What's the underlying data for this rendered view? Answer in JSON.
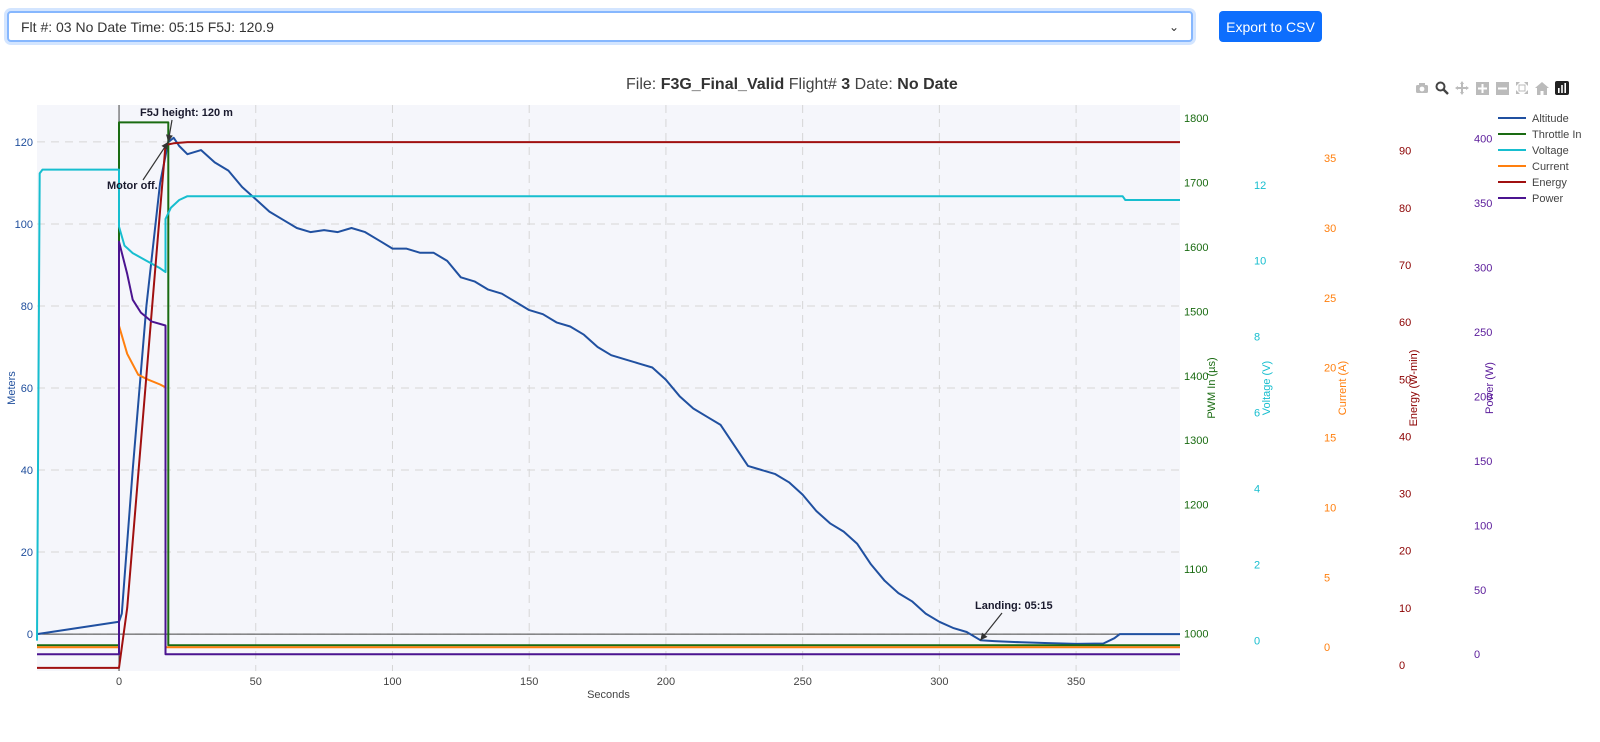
{
  "selector": {
    "value": "Flt #: 03 No Date Time: 05:15 F5J: 120.9"
  },
  "export_label": "Export to CSV",
  "title": {
    "file_label": "File:",
    "file": "F3G_Final_Valid",
    "flight_label": "Flight#",
    "flight": "3",
    "date_label": "Date:",
    "date": "No Date"
  },
  "modebar": [
    "camera-icon",
    "zoom-icon",
    "pan-icon",
    "zoom-in-icon",
    "zoom-out-icon",
    "autoscale-icon",
    "home-icon",
    "plotly-logo-icon"
  ],
  "chart_data": {
    "type": "line",
    "xlabel": "Seconds",
    "xlim": [
      -30,
      388
    ],
    "xticks": [
      0,
      50,
      100,
      150,
      200,
      250,
      300,
      350
    ],
    "axes": {
      "y": {
        "label": "Meters",
        "range": [
          -9,
          129
        ],
        "ticks": [
          0,
          20,
          40,
          60,
          80,
          100,
          120
        ],
        "color": "#1f4e9c"
      },
      "y2": {
        "label": "PWM In (µs)",
        "range": [
          942,
          1820
        ],
        "ticks": [
          1000,
          1100,
          1200,
          1300,
          1400,
          1500,
          1600,
          1700,
          1800
        ],
        "color": "#1a6b12"
      },
      "y3": {
        "label": "Voltage (V)",
        "range": [
          -0.8,
          14.1
        ],
        "ticks": [
          0,
          2,
          4,
          6,
          8,
          10,
          12
        ],
        "color": "#17becf"
      },
      "y4": {
        "label": "Current (A)",
        "range": [
          -1.7,
          38.8
        ],
        "ticks": [
          0,
          5,
          10,
          15,
          20,
          25,
          30,
          35
        ],
        "color": "#ff7f0e"
      },
      "y5": {
        "label": "Energy (W-min)",
        "range": [
          -1.05,
          98
        ],
        "ticks": [
          0,
          10,
          20,
          30,
          40,
          50,
          60,
          70,
          80,
          90
        ],
        "color": "#8b0000"
      },
      "y6": {
        "label": "Power (W)",
        "range": [
          -13,
          426
        ],
        "ticks": [
          0,
          50,
          100,
          150,
          200,
          250,
          300,
          350,
          400
        ],
        "color": "#5a1b9a"
      }
    },
    "series": [
      {
        "name": "Altitude",
        "axis": "y",
        "color": "#2050a0",
        "x": [
          -30,
          -10,
          0,
          1,
          5,
          10,
          15,
          18,
          20,
          22,
          25,
          30,
          35,
          40,
          45,
          50,
          55,
          60,
          65,
          70,
          75,
          80,
          85,
          90,
          95,
          100,
          105,
          110,
          115,
          120,
          125,
          130,
          135,
          140,
          145,
          150,
          155,
          160,
          165,
          170,
          175,
          180,
          185,
          190,
          195,
          200,
          205,
          210,
          215,
          220,
          225,
          230,
          235,
          240,
          245,
          250,
          255,
          260,
          265,
          270,
          275,
          280,
          285,
          290,
          295,
          300,
          305,
          310,
          315,
          320,
          330,
          340,
          350,
          360,
          364,
          366,
          370,
          388
        ],
        "y": [
          0,
          2,
          3,
          5,
          40,
          80,
          110,
          120,
          121,
          119,
          117,
          118,
          115,
          113,
          109,
          106,
          103,
          101,
          99,
          98,
          98.5,
          98,
          99,
          98,
          96,
          94,
          94,
          93,
          93,
          91,
          87,
          86,
          84,
          83,
          81,
          79,
          78,
          76,
          75,
          73,
          70,
          68,
          67,
          66,
          65,
          62,
          58,
          55,
          53,
          51,
          46,
          41,
          40,
          39,
          37,
          34,
          30,
          27,
          25,
          22,
          17,
          13,
          10,
          8,
          5,
          3,
          1.5,
          0.5,
          -1.5,
          -1.7,
          -2,
          -2.2,
          -2.4,
          -2.3,
          -1,
          0,
          0,
          0
        ]
      },
      {
        "name": "Throttle In",
        "axis": "y2",
        "color": "#1a6b12",
        "x": [
          -30,
          0,
          0,
          18,
          18,
          388
        ],
        "y": [
          982,
          982,
          1793,
          1793,
          982,
          982
        ]
      },
      {
        "name": "Voltage",
        "axis": "y3",
        "color": "#17becf",
        "x": [
          -30,
          -29,
          -28,
          0,
          0,
          2,
          5,
          10,
          15,
          17,
          17,
          19,
          22,
          25,
          30,
          40,
          100,
          300,
          367,
          368,
          388
        ],
        "y": [
          0,
          12.3,
          12.4,
          12.4,
          10.9,
          10.4,
          10.2,
          10.0,
          9.8,
          9.7,
          11.1,
          11.4,
          11.6,
          11.7,
          11.7,
          11.7,
          11.7,
          11.7,
          11.7,
          11.6,
          11.6
        ]
      },
      {
        "name": "Current",
        "axis": "y4",
        "color": "#ff7f0e",
        "x": [
          -30,
          0,
          0,
          3,
          7,
          10,
          15,
          17,
          17,
          388
        ],
        "y": [
          0,
          0,
          23,
          21,
          19.5,
          19.2,
          18.8,
          18.6,
          0,
          0
        ]
      },
      {
        "name": "Energy",
        "axis": "y5",
        "color": "#a01010",
        "x": [
          -30,
          0,
          3,
          17,
          20,
          25,
          388
        ],
        "y": [
          -0.5,
          -0.5,
          10,
          91,
          91.3,
          91.5,
          91.5
        ]
      },
      {
        "name": "Power",
        "axis": "y6",
        "color": "#4b1490",
        "x": [
          -30,
          0,
          0,
          3,
          5,
          8,
          12,
          17,
          17,
          388
        ],
        "y": [
          0,
          0,
          320,
          295,
          275,
          265,
          258,
          255,
          0,
          0
        ]
      }
    ],
    "annotations": [
      {
        "text": "F5J height: 120 m",
        "x": 18,
        "y": 120
      },
      {
        "text": "Motor off.",
        "x": 18,
        "y": 120
      },
      {
        "text": "Landing: 05:15",
        "x": 315,
        "y": -1.5
      }
    ],
    "legend": {
      "position": "top-right",
      "entries": [
        "Altitude",
        "Throttle In",
        "Voltage",
        "Current",
        "Energy",
        "Power"
      ]
    },
    "grid": true
  }
}
